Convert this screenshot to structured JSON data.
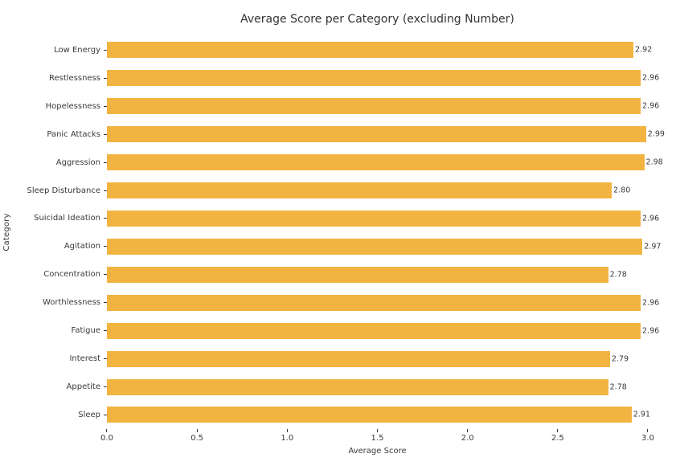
{
  "chart_data": {
    "type": "bar",
    "orientation": "horizontal",
    "title": "Average Score per Category (excluding Number)",
    "xlabel": "Average Score",
    "ylabel": "Category",
    "categories": [
      "Low Energy",
      "Restlessness",
      "Hopelessness",
      "Panic Attacks",
      "Aggression",
      "Sleep Disturbance",
      "Suicidal Ideation",
      "Agitation",
      "Concentration",
      "Worthlessness",
      "Fatigue",
      "Interest",
      "Appetite",
      "Sleep"
    ],
    "values": [
      2.92,
      2.96,
      2.96,
      2.99,
      2.98,
      2.8,
      2.96,
      2.97,
      2.78,
      2.96,
      2.96,
      2.79,
      2.78,
      2.91
    ],
    "value_labels": [
      "2.92",
      "2.96",
      "2.96",
      "2.99",
      "2.98",
      "2.80",
      "2.96",
      "2.97",
      "2.78",
      "2.96",
      "2.96",
      "2.79",
      "2.78",
      "2.91"
    ],
    "xticks": [
      "0.0",
      "0.5",
      "1.0",
      "1.5",
      "2.0",
      "2.5",
      "3.0"
    ],
    "xlim": [
      0.0,
      3.0
    ],
    "grid": false,
    "legend": "none",
    "bar_color": "#F2B440",
    "text_color": "#3A3A3A"
  }
}
